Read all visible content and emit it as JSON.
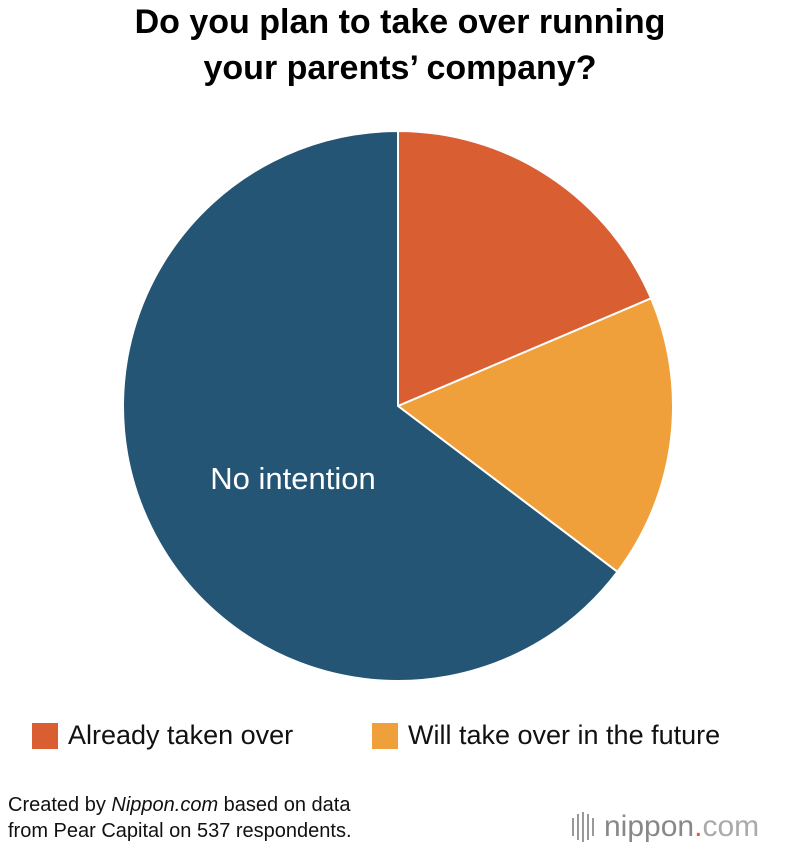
{
  "chart_data": {
    "type": "pie",
    "title": [
      "Do you plan to take over running",
      "your parents’ company?"
    ],
    "categories": [
      "Already taken over",
      "Will take over in the future",
      "No intention"
    ],
    "values": [
      18.6,
      16.7,
      64.7
    ],
    "colors": [
      "#d95f33",
      "#f0a03a",
      "#245574"
    ],
    "source": {
      "line1": [
        "Created by ",
        "Nippon.com",
        " based on data"
      ],
      "line2": "from Pear Capital on 537 respondents."
    },
    "logo": [
      "nippon",
      ".",
      "com"
    ]
  }
}
